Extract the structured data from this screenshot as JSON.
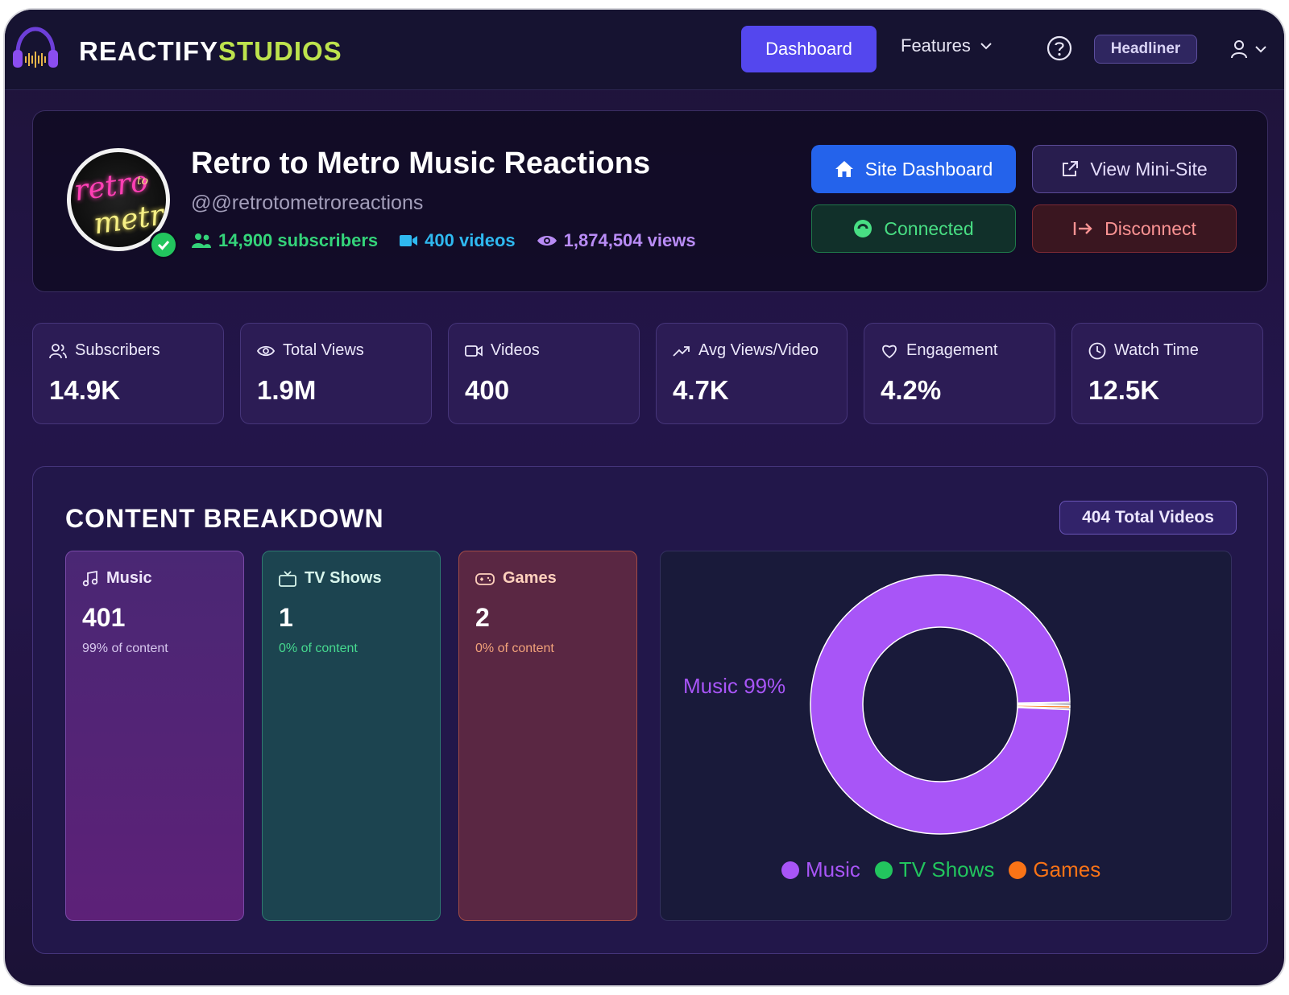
{
  "nav": {
    "brand_part1": "REACTIFY",
    "brand_part2": "STUDIOS",
    "dashboard_label": "Dashboard",
    "features_label": "Features",
    "plan_badge": "Headliner"
  },
  "profile": {
    "avatar_text1": "retro",
    "avatar_text2": "to",
    "avatar_text3": "metro",
    "channel_name": "Retro to Metro Music Reactions",
    "handle": "@@retrotometroreactions",
    "subscribers": "14,900 subscribers",
    "videos": "400 videos",
    "views": "1,874,504 views",
    "buttons": {
      "site_dashboard": "Site Dashboard",
      "view_mini_site": "View Mini-Site",
      "connected": "Connected",
      "disconnect": "Disconnect"
    }
  },
  "metrics": [
    {
      "label": "Subscribers",
      "value": "14.9K",
      "icon": "users-icon"
    },
    {
      "label": "Total Views",
      "value": "1.9M",
      "icon": "eye-icon"
    },
    {
      "label": "Videos",
      "value": "400",
      "icon": "video-icon"
    },
    {
      "label": "Avg Views/Video",
      "value": "4.7K",
      "icon": "trending-up-icon"
    },
    {
      "label": "Engagement",
      "value": "4.2%",
      "icon": "heart-icon"
    },
    {
      "label": "Watch Time",
      "value": "12.5K",
      "icon": "clock-icon"
    }
  ],
  "breakdown": {
    "title": "CONTENT BREAKDOWN",
    "total_badge": "404 Total Videos",
    "categories": [
      {
        "label": "Music",
        "value": "401",
        "pct": "99% of content",
        "icon": "music-note-icon"
      },
      {
        "label": "TV Shows",
        "value": "1",
        "pct": "0% of content",
        "icon": "tv-icon"
      },
      {
        "label": "Games",
        "value": "2",
        "pct": "0% of content",
        "icon": "gamepad-icon"
      }
    ]
  },
  "colors": {
    "music": "#a855f7",
    "tv_shows": "#22c55e",
    "games": "#f97316",
    "accent": "#5447ee"
  },
  "chart_data": {
    "type": "pie",
    "variant": "donut",
    "categories": [
      "Music",
      "TV Shows",
      "Games"
    ],
    "values": [
      401,
      1,
      2
    ],
    "slice_label": "Music 99%",
    "legend_position": "bottom"
  }
}
